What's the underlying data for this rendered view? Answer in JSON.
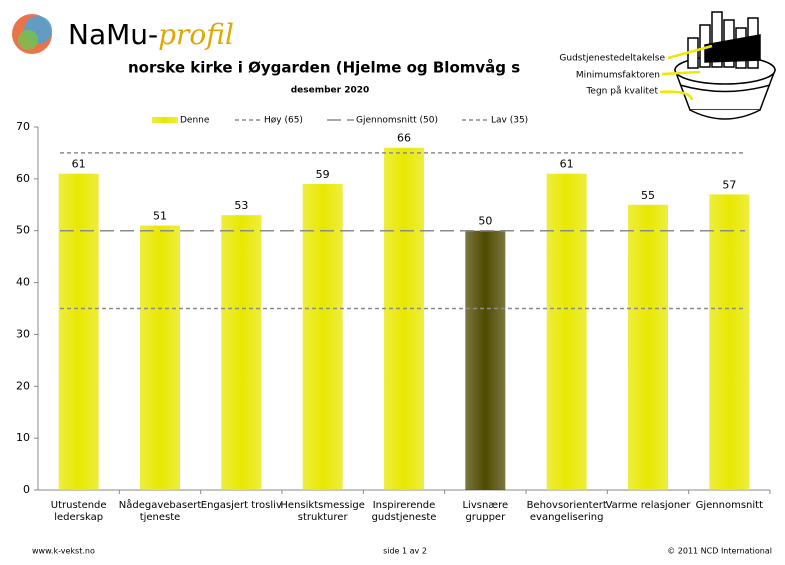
{
  "chart_data": {
    "type": "bar",
    "brand": "NaMu-",
    "brand_accent": "profil",
    "title": "norske kirke i Øygarden (Hjelme og Blomvåg s",
    "subtitle": "desember 2020",
    "barrel_labels": [
      "Gudstjenestedeltakelse",
      "Minimumsfaktoren",
      "Tegn på kvalitet"
    ],
    "categories": [
      [
        "Utrustende",
        "lederskap"
      ],
      [
        "Nådegavebasert",
        "tjeneste"
      ],
      [
        "Engasjert trosliv"
      ],
      [
        "Hensiktsmessige",
        "strukturer"
      ],
      [
        "Inspirerende",
        "gudstjeneste"
      ],
      [
        "Livsnære",
        "grupper"
      ],
      [
        "Behovsorientert",
        "evangelisering"
      ],
      [
        "Varme relasjoner"
      ],
      [
        "Gjennomsnitt"
      ]
    ],
    "series": [
      {
        "name": "Denne",
        "color": "#e8e800",
        "colors": [
          "#e8e800",
          "#e8e800",
          "#e8e800",
          "#e8e800",
          "#e8e800",
          "#4f4a00",
          "#e8e800",
          "#e8e800",
          "#e8e800"
        ],
        "values": [
          61,
          51,
          53,
          59,
          66,
          50,
          61,
          55,
          57
        ]
      }
    ],
    "reference_lines": [
      {
        "name": "Høy (65)",
        "value": 65,
        "color": "#8c8c8c",
        "dash": "4 3"
      },
      {
        "name": "Gjennomsnitt (50)",
        "value": 50,
        "color": "#8c8c8c",
        "dash": "14 6"
      },
      {
        "name": "Lav (35)",
        "value": 35,
        "color": "#8c8c8c",
        "dash": "4 3"
      }
    ],
    "ylim": [
      0,
      70
    ],
    "yticks": [
      0,
      10,
      20,
      30,
      40,
      50,
      60,
      70
    ],
    "footer": {
      "left": "www.k-vekst.no",
      "center": "side 1 av 2",
      "right": "© 2011 NCD International"
    }
  }
}
